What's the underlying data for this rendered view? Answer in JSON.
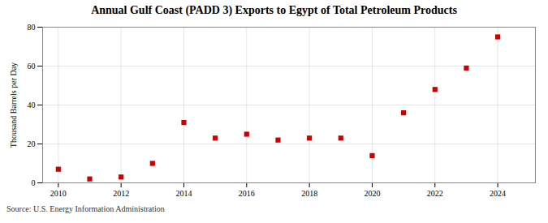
{
  "chart_data": {
    "type": "scatter",
    "title": "Annual Gulf Coast (PADD 3) Exports to Egypt of Total Petroleum Products",
    "ylabel": "Thousand Barrels per Day",
    "source": "Source: U.S. Energy Information Administration",
    "x": [
      2010,
      2011,
      2012,
      2013,
      2014,
      2015,
      2016,
      2017,
      2018,
      2019,
      2020,
      2021,
      2022,
      2023,
      2024
    ],
    "values": [
      7.0,
      2.0,
      3.0,
      10.0,
      31.0,
      23.0,
      25.0,
      22.0,
      23.0,
      23.0,
      14.0,
      36.0,
      48.0,
      59.0,
      75.0
    ],
    "color": "#cc0000",
    "marker": "square",
    "xlim": [
      2009.5,
      2025.2
    ],
    "xticks": [
      2010,
      2012,
      2014,
      2016,
      2018,
      2020,
      2022,
      2024
    ],
    "ylim": [
      0,
      80
    ],
    "yticks": [
      0,
      20,
      40,
      60,
      80
    ],
    "grid": true
  }
}
